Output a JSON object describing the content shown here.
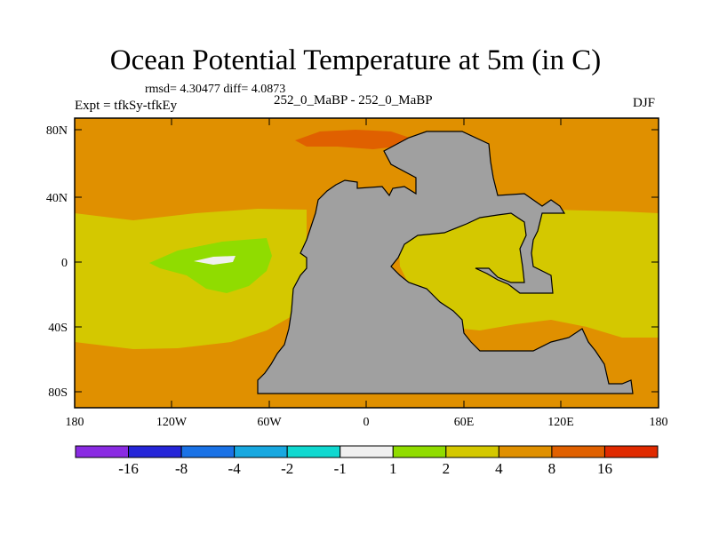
{
  "title": "Ocean Potential Temperature at 5m (in C)",
  "stats": "rmsd= 4.30477 diff= 4.0873",
  "experiment": "Expt = tfkSy-tfkEy",
  "case_label": "252_0_MaBP - 252_0_MaBP",
  "season": "DJF",
  "colors": {
    "land": "#a0a0a0",
    "dark_orange": "#e06000",
    "orange": "#e09000",
    "yellow": "#d4c800",
    "green": "#90dc00",
    "white": "#f0f0f0"
  },
  "map": {
    "y_ticks": [
      "80N",
      "40N",
      "0",
      "40S",
      "80S"
    ],
    "x_ticks": [
      "180",
      "120W",
      "60W",
      "0",
      "60E",
      "120E",
      "180"
    ]
  },
  "colorbar": {
    "colors": [
      "#8a2be2",
      "#2626d8",
      "#1a72e6",
      "#18a8e0",
      "#10d8d0",
      "#f0f0f0",
      "#90dc00",
      "#d4c800",
      "#e09000",
      "#e06000",
      "#e02a00"
    ],
    "labels": [
      "-16",
      "-8",
      "-4",
      "-2",
      "-1",
      "1",
      "2",
      "4",
      "8",
      "16"
    ]
  }
}
